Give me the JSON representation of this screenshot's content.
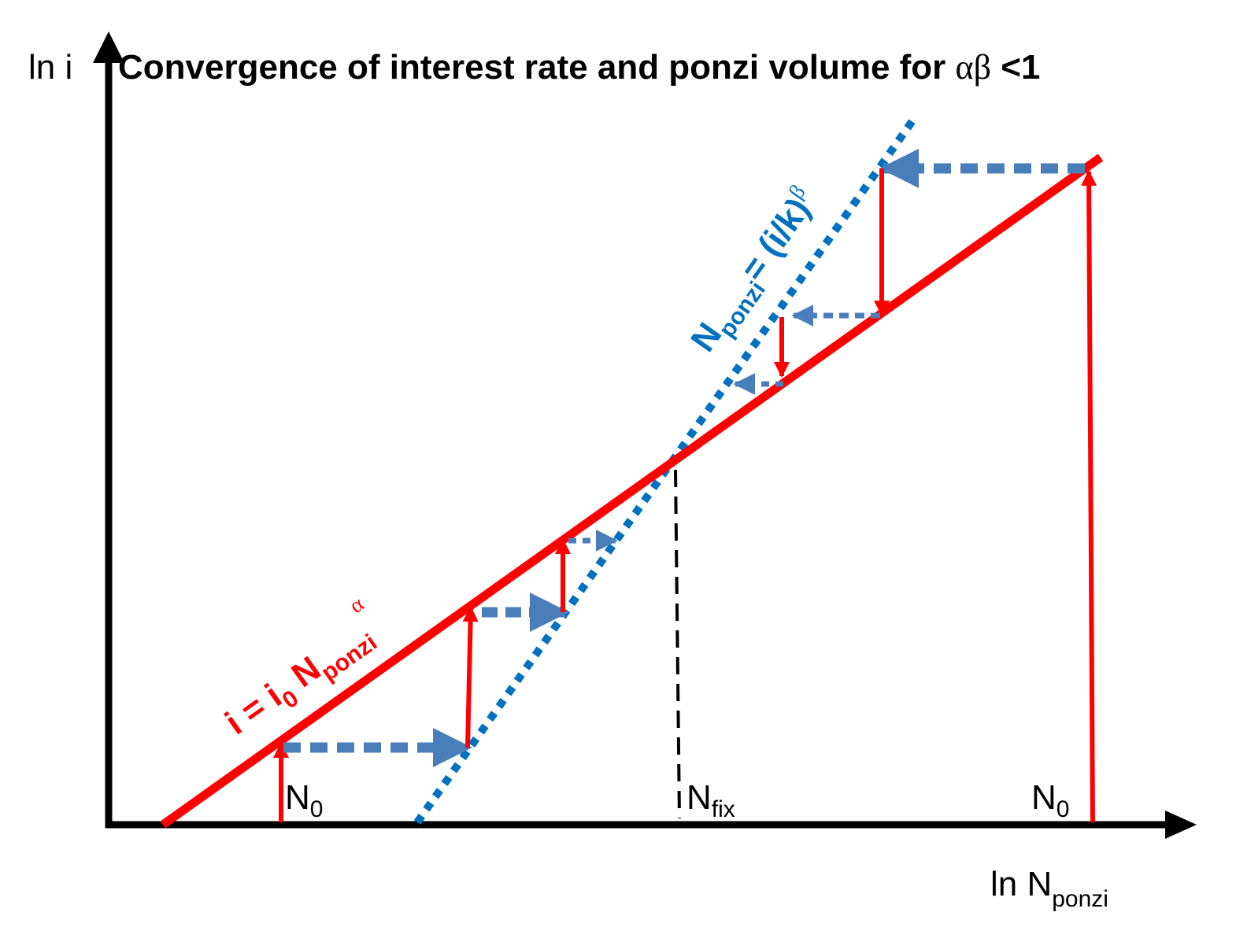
{
  "title": {
    "text": "Convergence of interest rate and ponzi volume for",
    "symbol": "αβ",
    "tail": "<1"
  },
  "y_axis": {
    "label": "ln i"
  },
  "x_axis": {
    "base": "ln N",
    "sub": "ponzi"
  },
  "red_curve": {
    "parts": [
      "i = i",
      "0",
      " N",
      "ponzi",
      "α"
    ]
  },
  "blue_curve": {
    "parts": [
      "N",
      "ponzi",
      "= (i/k)",
      "β"
    ]
  },
  "markers": [
    {
      "base": "N",
      "sub": "0"
    },
    {
      "base": "N",
      "sub": "fix"
    },
    {
      "base": "N",
      "sub": "0"
    }
  ]
}
